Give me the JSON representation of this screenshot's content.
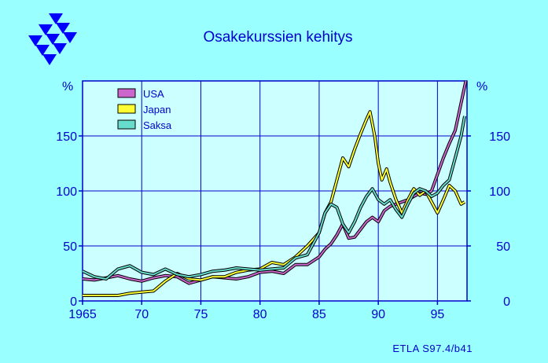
{
  "title": "Osakekurssien kehitys",
  "credit": "ETLA S97.4/b41",
  "colors": {
    "background": "#99FFFF",
    "plot_area": "#CCFFFF",
    "axis_text": "#0000CC",
    "grid": "#0000CC",
    "logo": "#0000FF"
  },
  "chart_data": {
    "type": "line",
    "title": "Osakekurssien kehitys",
    "ylabel_left": "%",
    "ylabel_right": "%",
    "xlim": [
      1965,
      1997.5
    ],
    "ylim": [
      0,
      200
    ],
    "x_ticks": [
      1965,
      1970,
      1975,
      1980,
      1985,
      1990,
      1995
    ],
    "x_tick_labels": [
      "1965",
      "70",
      "75",
      "80",
      "85",
      "90",
      "95"
    ],
    "y_ticks": [
      0,
      50,
      100,
      150
    ],
    "y_tick_labels": [
      "0",
      "50",
      "100",
      "150"
    ],
    "grid": true,
    "legend": "top-left",
    "series": [
      {
        "name": "USA",
        "color": "#CC66CC",
        "points": [
          [
            1965,
            20
          ],
          [
            1966,
            19
          ],
          [
            1967,
            21
          ],
          [
            1968,
            23
          ],
          [
            1969,
            20
          ],
          [
            1970,
            18
          ],
          [
            1971,
            21
          ],
          [
            1972,
            23
          ],
          [
            1973,
            22
          ],
          [
            1974,
            16
          ],
          [
            1975,
            19
          ],
          [
            1976,
            22
          ],
          [
            1977,
            21
          ],
          [
            1978,
            20
          ],
          [
            1979,
            22
          ],
          [
            1980,
            26
          ],
          [
            1981,
            27
          ],
          [
            1982,
            25
          ],
          [
            1983,
            33
          ],
          [
            1984,
            33
          ],
          [
            1985,
            40
          ],
          [
            1985.5,
            47
          ],
          [
            1986,
            52
          ],
          [
            1986.5,
            60
          ],
          [
            1987,
            70
          ],
          [
            1987.5,
            57
          ],
          [
            1988,
            58
          ],
          [
            1988.5,
            65
          ],
          [
            1989,
            72
          ],
          [
            1989.5,
            76
          ],
          [
            1990,
            72
          ],
          [
            1990.5,
            82
          ],
          [
            1991,
            86
          ],
          [
            1991.5,
            88
          ],
          [
            1992,
            90
          ],
          [
            1992.5,
            92
          ],
          [
            1993,
            95
          ],
          [
            1993.5,
            98
          ],
          [
            1994,
            97
          ],
          [
            1994.5,
            100
          ],
          [
            1995,
            115
          ],
          [
            1995.5,
            130
          ],
          [
            1996,
            143
          ],
          [
            1996.5,
            155
          ],
          [
            1997,
            180
          ],
          [
            1997.4,
            200
          ]
        ]
      },
      {
        "name": "Japan",
        "color": "#FFFF33",
        "points": [
          [
            1965,
            5
          ],
          [
            1966,
            5
          ],
          [
            1967,
            5
          ],
          [
            1968,
            5
          ],
          [
            1969,
            7
          ],
          [
            1970,
            8
          ],
          [
            1971,
            9
          ],
          [
            1972,
            18
          ],
          [
            1973,
            25
          ],
          [
            1974,
            20
          ],
          [
            1975,
            19
          ],
          [
            1976,
            22
          ],
          [
            1977,
            22
          ],
          [
            1978,
            26
          ],
          [
            1979,
            28
          ],
          [
            1980,
            29
          ],
          [
            1981,
            35
          ],
          [
            1982,
            33
          ],
          [
            1983,
            40
          ],
          [
            1984,
            50
          ],
          [
            1985,
            62
          ],
          [
            1985.5,
            80
          ],
          [
            1986,
            90
          ],
          [
            1986.5,
            110
          ],
          [
            1987,
            130
          ],
          [
            1987.5,
            122
          ],
          [
            1988,
            138
          ],
          [
            1988.5,
            152
          ],
          [
            1989,
            165
          ],
          [
            1989.3,
            172
          ],
          [
            1989.7,
            150
          ],
          [
            1990,
            125
          ],
          [
            1990.3,
            110
          ],
          [
            1990.7,
            120
          ],
          [
            1991,
            108
          ],
          [
            1991.5,
            92
          ],
          [
            1992,
            80
          ],
          [
            1992.5,
            92
          ],
          [
            1993,
            102
          ],
          [
            1993.5,
            96
          ],
          [
            1994,
            100
          ],
          [
            1994.5,
            90
          ],
          [
            1995,
            80
          ],
          [
            1995.5,
            92
          ],
          [
            1996,
            105
          ],
          [
            1996.5,
            100
          ],
          [
            1997,
            88
          ],
          [
            1997.3,
            90
          ]
        ]
      },
      {
        "name": "Saksa",
        "color": "#66DDCC",
        "points": [
          [
            1965,
            27
          ],
          [
            1966,
            22
          ],
          [
            1967,
            20
          ],
          [
            1968,
            29
          ],
          [
            1969,
            32
          ],
          [
            1970,
            26
          ],
          [
            1971,
            24
          ],
          [
            1972,
            29
          ],
          [
            1973,
            24
          ],
          [
            1974,
            22
          ],
          [
            1975,
            24
          ],
          [
            1976,
            27
          ],
          [
            1977,
            28
          ],
          [
            1978,
            30
          ],
          [
            1979,
            29
          ],
          [
            1980,
            28
          ],
          [
            1981,
            29
          ],
          [
            1982,
            30
          ],
          [
            1983,
            39
          ],
          [
            1984,
            42
          ],
          [
            1985,
            62
          ],
          [
            1985.5,
            80
          ],
          [
            1986,
            88
          ],
          [
            1986.5,
            85
          ],
          [
            1987,
            70
          ],
          [
            1987.5,
            62
          ],
          [
            1988,
            72
          ],
          [
            1988.5,
            85
          ],
          [
            1989,
            95
          ],
          [
            1989.5,
            102
          ],
          [
            1990,
            92
          ],
          [
            1990.5,
            88
          ],
          [
            1991,
            92
          ],
          [
            1991.5,
            83
          ],
          [
            1992,
            76
          ],
          [
            1992.5,
            88
          ],
          [
            1993,
            98
          ],
          [
            1993.5,
            102
          ],
          [
            1994,
            100
          ],
          [
            1994.5,
            95
          ],
          [
            1995,
            98
          ],
          [
            1995.5,
            105
          ],
          [
            1996,
            110
          ],
          [
            1996.5,
            130
          ],
          [
            1997,
            150
          ],
          [
            1997.3,
            168
          ]
        ]
      }
    ]
  }
}
